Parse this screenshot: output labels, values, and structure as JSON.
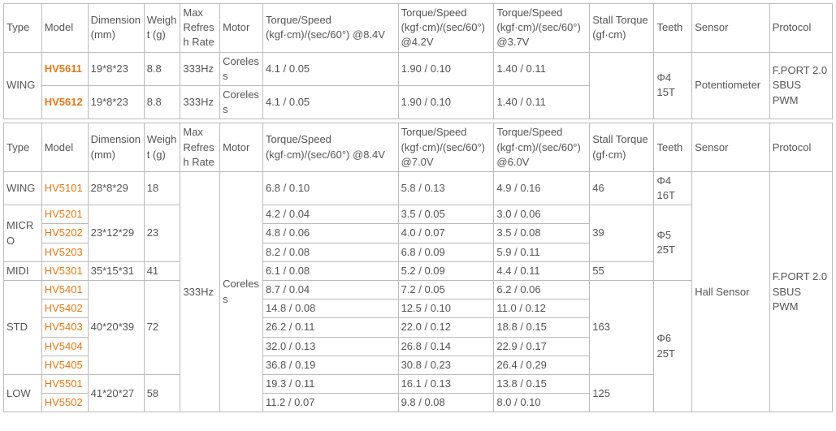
{
  "headers": {
    "type": "Type",
    "model": "Model",
    "dimension": "Dimension (mm)",
    "weight": "Weight (g)",
    "refresh": "Max Refresh Rate",
    "motor": "Motor",
    "ts84": "Torque/Speed (kgf·cm)/(sec/60°) @8.4V",
    "ts42": "Torque/Speed (kgf·cm)/(sec/60°) @4.2V",
    "ts37": "Torque/Speed (kgf·cm)/(sec/60°) @3.7V",
    "ts70": "Torque/Speed (kgf·cm)/(sec/60°) @7.0V",
    "ts60": "Torque/Speed (kgf·cm)/(sec/60°) @6.0V",
    "stall": "Stall Torque (gf·cm)",
    "teeth": "Teeth",
    "sensor": "Sensor",
    "protocol": "Protocol"
  },
  "table1": {
    "type": "WING",
    "teeth": "Φ4 15T",
    "sensor": "Potentiometer",
    "protocol": "F.PORT 2.0 SBUS PWM",
    "refresh": "333Hz",
    "motor": "Coreless",
    "rows": [
      {
        "model": "HV5611",
        "dim": "19*8*23",
        "wt": "8.8",
        "ts84": "4.1 / 0.05",
        "ts42": "1.90 / 0.10",
        "ts37": "1.40 / 0.11"
      },
      {
        "model": "HV5612",
        "dim": "19*8*23",
        "wt": "8.8",
        "ts84": "4.1 / 0.05",
        "ts42": "1.90 / 0.10",
        "ts37": "1.40 / 0.11"
      }
    ]
  },
  "table2": {
    "refresh": "333Hz",
    "motor": "Coreless",
    "sensor": "Hall Sensor",
    "protocol": "F.PORT 2.0 SBUS PWM",
    "groups": {
      "wing": {
        "label": "WING",
        "teeth": "Φ4 16T",
        "stall": "46",
        "dim": "28*8*29",
        "wt": "18"
      },
      "micro": {
        "label": "MICRO",
        "teeth": "Φ5 25T",
        "stall": "39",
        "dim": "23*12*29",
        "wt": "23"
      },
      "midi": {
        "label": "MIDI",
        "stall": "55",
        "dim": "35*15*31",
        "wt": "41"
      },
      "std": {
        "label": "STD",
        "teeth": "Φ6 25T",
        "stall": "163",
        "dim": "40*20*39",
        "wt": "72"
      },
      "low": {
        "label": "LOW",
        "stall": "125",
        "dim": "41*20*27",
        "wt": "58"
      }
    },
    "rows": {
      "r5101": {
        "model": "HV5101",
        "ts84": "6.8 / 0.10",
        "ts70": "5.8 / 0.13",
        "ts60": "4.9 / 0.16"
      },
      "r5201": {
        "model": "HV5201",
        "ts84": "4.2 / 0.04",
        "ts70": "3.5 / 0.05",
        "ts60": "3.0 / 0.06"
      },
      "r5202": {
        "model": "HV5202",
        "ts84": " 4.8 / 0.06",
        "ts70": "4.0 / 0.07",
        "ts60": " 3.5 / 0.08"
      },
      "r5203": {
        "model": "HV5203",
        "ts84": "8.2 / 0.08",
        "ts70": "6.8 / 0.09",
        "ts60": "5.9 / 0.11"
      },
      "r5301": {
        "model": "HV5301",
        "ts84": "6.1 / 0.08",
        "ts70": "5.2 / 0.09",
        "ts60": "4.4 / 0.11"
      },
      "r5401": {
        "model": "HV5401",
        "ts84": "8.7 / 0.04",
        "ts70": "7.2 / 0.05",
        "ts60": "6.2 / 0.06"
      },
      "r5402": {
        "model": "HV5402",
        "ts84": "14.8 / 0.08",
        "ts70": "12.5 / 0.10",
        "ts60": "11.0 / 0.12"
      },
      "r5403": {
        "model": "HV5403",
        "ts84": "26.2 / 0.11",
        "ts70": "22.0 / 0.12",
        "ts60": "18.8 / 0.15"
      },
      "r5404": {
        "model": "HV5404",
        "ts84": "32.0 / 0.13",
        "ts70": "26.8 / 0.14",
        "ts60": "22.9 / 0.17"
      },
      "r5405": {
        "model": "HV5405",
        "ts84": "36.8 / 0.19",
        "ts70": "30.8 / 0.23",
        "ts60": "26.4 / 0.29"
      },
      "r5501": {
        "model": "HV5501",
        "ts84": "19.3 / 0.11",
        "ts70": "16.1 / 0.13",
        "ts60": "13.8 / 0.15"
      },
      "r5502": {
        "model": "HV5502",
        "ts84": "11.2 / 0.07",
        "ts70": "9.8 / 0.08",
        "ts60": "8.0 / 0.10"
      }
    }
  },
  "colwidths": {
    "type": "46",
    "model": "56",
    "dim": "68",
    "wt": "44",
    "refresh": "48",
    "motor": "52",
    "ts1": "164",
    "ts2": "116",
    "ts3": "116",
    "stall": "78",
    "teeth": "46",
    "sensor": "94",
    "protocol": "76"
  }
}
